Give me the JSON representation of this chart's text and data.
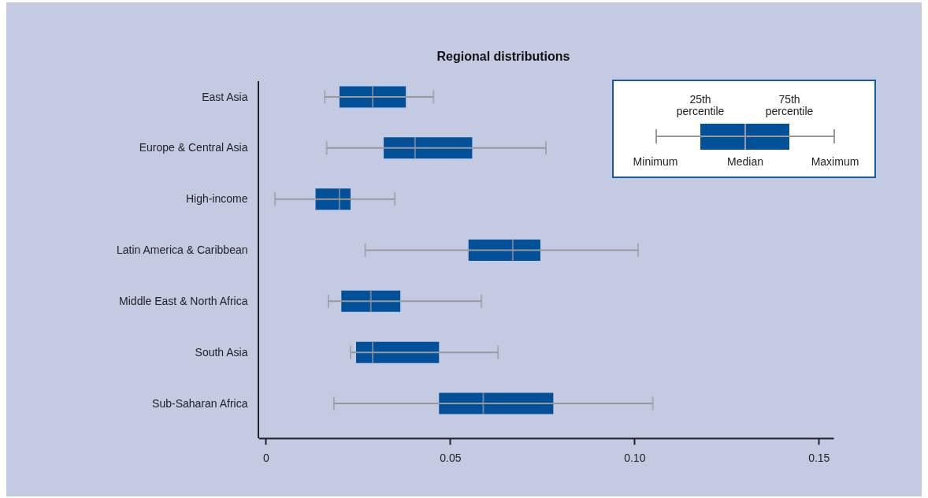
{
  "chart_data": {
    "type": "box",
    "orientation": "horizontal",
    "title": "Regional distributions",
    "categories": [
      "East Asia",
      "Europe & Central Asia",
      "High-income",
      "Latin America & Caribbean",
      "Middle East & North Africa",
      "South Asia",
      "Sub-Saharan Africa"
    ],
    "series": [
      {
        "color": "#00519a",
        "boxes": [
          {
            "low": 0.016,
            "q1": 0.02,
            "median": 0.029,
            "q3": 0.038,
            "high": 0.0455
          },
          {
            "low": 0.0165,
            "q1": 0.032,
            "median": 0.0405,
            "q3": 0.056,
            "high": 0.076
          },
          {
            "low": 0.0025,
            "q1": 0.0135,
            "median": 0.02,
            "q3": 0.023,
            "high": 0.035
          },
          {
            "low": 0.027,
            "q1": 0.055,
            "median": 0.067,
            "q3": 0.0745,
            "high": 0.101
          },
          {
            "low": 0.017,
            "q1": 0.0205,
            "median": 0.0285,
            "q3": 0.0365,
            "high": 0.0585
          },
          {
            "low": 0.023,
            "q1": 0.0245,
            "median": 0.029,
            "q3": 0.047,
            "high": 0.063
          },
          {
            "low": 0.0185,
            "q1": 0.047,
            "median": 0.059,
            "q3": 0.078,
            "high": 0.105
          }
        ]
      }
    ],
    "xlim": [
      -0.002,
      0.154
    ],
    "xticks": [
      0,
      0.05,
      {
        "value": 0.1,
        "label": "0.10"
      },
      0.15
    ],
    "grid": false,
    "annotations": [
      "25th percentile",
      "75th percentile",
      "Minimum",
      "Median",
      "Maximum"
    ]
  }
}
